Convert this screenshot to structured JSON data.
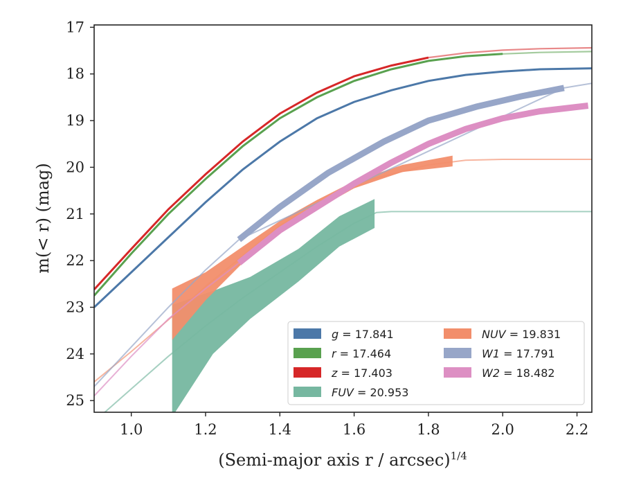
{
  "chart_data": {
    "type": "line",
    "xlabel": "(Semi-major axis r / arcsec)",
    "xlabel_exponent": "1/4",
    "ylabel": "m(< r) (mag)",
    "xlim": [
      0.9,
      2.24
    ],
    "ylim": [
      25.25,
      16.95
    ],
    "y_inverted": true,
    "x_ticks": [
      "1.0",
      "1.2",
      "1.4",
      "1.6",
      "1.8",
      "2.0",
      "2.2"
    ],
    "y_ticks": [
      "17",
      "18",
      "19",
      "20",
      "21",
      "22",
      "23",
      "24",
      "25"
    ],
    "legend_position": "lower right",
    "series": [
      {
        "name": "g = 17.841",
        "color": "#4c78a8",
        "kind": "line",
        "x": [
          0.9,
          1.0,
          1.1,
          1.2,
          1.3,
          1.4,
          1.5,
          1.6,
          1.7,
          1.8,
          1.9,
          2.0,
          2.1,
          2.24
        ],
        "y": [
          23.0,
          22.25,
          21.5,
          20.75,
          20.05,
          19.45,
          18.95,
          18.6,
          18.35,
          18.15,
          18.02,
          17.95,
          17.9,
          17.88
        ],
        "solid_until": 2.24
      },
      {
        "name": "r = 17.464",
        "color": "#59a14f",
        "kind": "line",
        "x": [
          0.9,
          1.0,
          1.1,
          1.2,
          1.3,
          1.4,
          1.5,
          1.6,
          1.7,
          1.8,
          1.9,
          2.0,
          2.1,
          2.24
        ],
        "y": [
          22.75,
          21.85,
          21.0,
          20.25,
          19.55,
          18.95,
          18.5,
          18.15,
          17.9,
          17.72,
          17.62,
          17.57,
          17.54,
          17.52
        ],
        "solid_until": 2.02
      },
      {
        "name": "z = 17.403",
        "color": "#d62728",
        "kind": "line",
        "x": [
          0.9,
          1.0,
          1.1,
          1.2,
          1.3,
          1.4,
          1.5,
          1.6,
          1.7,
          1.8,
          1.9,
          2.0,
          2.1,
          2.24
        ],
        "y": [
          22.62,
          21.75,
          20.9,
          20.15,
          19.45,
          18.85,
          18.4,
          18.05,
          17.82,
          17.65,
          17.55,
          17.49,
          17.46,
          17.44
        ],
        "solid_until": 1.86
      },
      {
        "name": "FUV = 20.953",
        "color": "#76b7a0",
        "kind": "band",
        "x": [
          1.11,
          1.22,
          1.32,
          1.45,
          1.56,
          1.655
        ],
        "y_low": [
          25.35,
          24.0,
          23.25,
          22.45,
          21.7,
          21.3
        ],
        "y_high": [
          22.95,
          22.65,
          22.35,
          21.75,
          21.05,
          20.68
        ],
        "tail_x": [
          0.9,
          1.0,
          1.1,
          1.2,
          1.3,
          1.4,
          1.5,
          1.6,
          1.66,
          1.7,
          2.24
        ],
        "tail_y": [
          25.45,
          24.75,
          24.05,
          23.4,
          22.8,
          22.25,
          21.7,
          21.2,
          20.97,
          20.95,
          20.95
        ]
      },
      {
        "name": "NUV = 19.831",
        "color": "#f28e6b",
        "kind": "band",
        "x": [
          1.11,
          1.2,
          1.3,
          1.4,
          1.5,
          1.6,
          1.73,
          1.865
        ],
        "y_low": [
          23.7,
          22.85,
          22.05,
          21.4,
          20.9,
          20.45,
          20.1,
          19.98
        ],
        "y_high": [
          22.6,
          22.25,
          21.7,
          21.15,
          20.7,
          20.3,
          19.95,
          19.75
        ],
        "tail_x": [
          0.9,
          1.0,
          1.11,
          1.2,
          1.4,
          1.6,
          1.8,
          1.9,
          2.0,
          2.24
        ],
        "tail_y": [
          24.6,
          23.95,
          23.2,
          22.55,
          21.25,
          20.35,
          19.95,
          19.85,
          19.83,
          19.83
        ]
      },
      {
        "name": "W1 = 17.791",
        "color": "#97a6c8",
        "kind": "thick",
        "x": [
          1.29,
          1.4,
          1.53,
          1.68,
          1.8,
          1.93,
          2.05,
          2.165
        ],
        "y": [
          21.55,
          20.85,
          20.12,
          19.45,
          19.0,
          18.7,
          18.48,
          18.3
        ],
        "tail_x": [
          0.9,
          1.0,
          1.1,
          1.2,
          1.29,
          2.165,
          2.24
        ],
        "tail_y": [
          24.7,
          23.85,
          23.0,
          22.2,
          21.55,
          18.3,
          18.2
        ]
      },
      {
        "name": "W2 = 18.482",
        "color": "#dd8fc3",
        "kind": "thick",
        "x": [
          1.29,
          1.4,
          1.5,
          1.6,
          1.7,
          1.8,
          1.9,
          2.0,
          2.1,
          2.23
        ],
        "y": [
          22.05,
          21.35,
          20.85,
          20.35,
          19.9,
          19.5,
          19.18,
          18.95,
          18.8,
          18.68
        ],
        "tail_x": [
          0.9,
          1.0,
          1.1,
          1.2,
          1.29
        ],
        "tail_y": [
          24.9,
          24.05,
          23.25,
          22.6,
          22.05
        ]
      }
    ]
  }
}
